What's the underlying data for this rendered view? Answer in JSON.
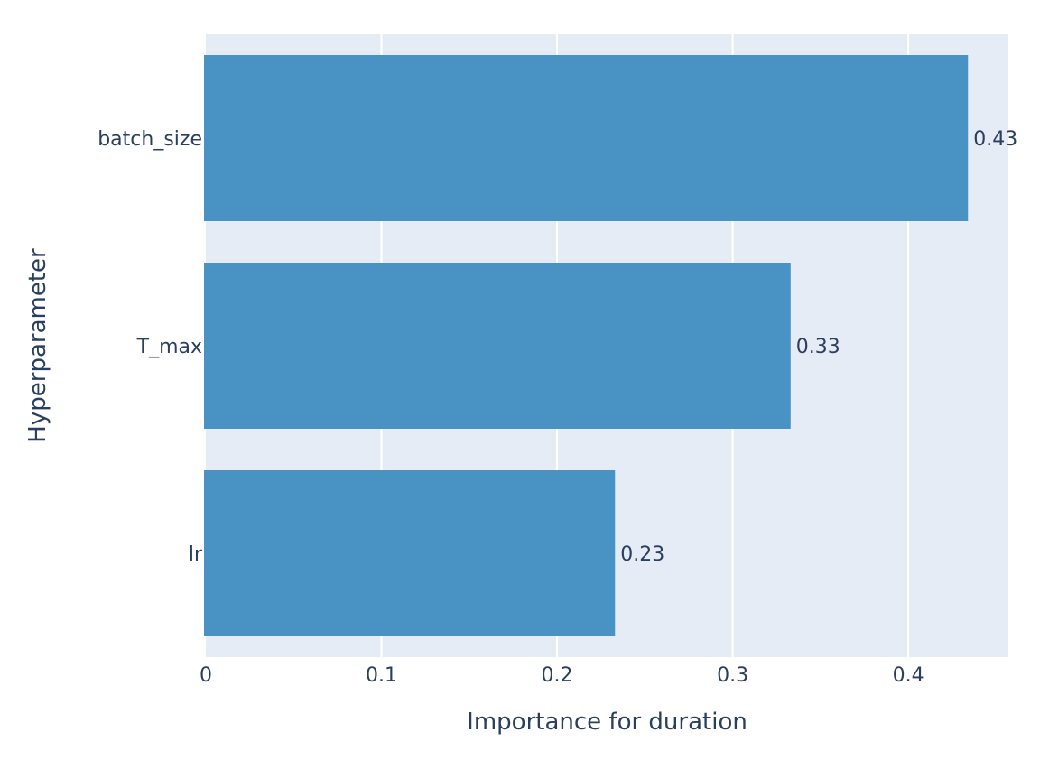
{
  "chart_data": {
    "type": "bar",
    "orientation": "horizontal",
    "categories": [
      "batch_size",
      "T_max",
      "lr"
    ],
    "values": [
      0.434,
      0.333,
      0.233
    ],
    "value_labels": [
      "0.43",
      "0.33",
      "0.23"
    ],
    "xlabel": "Importance for duration",
    "ylabel": "Hyperparameter",
    "xlim": [
      0,
      0.457
    ],
    "xticks": [
      0,
      0.1,
      0.2,
      0.3,
      0.4
    ],
    "xtick_labels": [
      "0",
      "0.1",
      "0.2",
      "0.3",
      "0.4"
    ],
    "grid": true,
    "colors": {
      "bar": "#4893c3",
      "plot_background": "#e5ecf6",
      "grid": "#ffffff",
      "text": "#2a3f5f"
    }
  }
}
